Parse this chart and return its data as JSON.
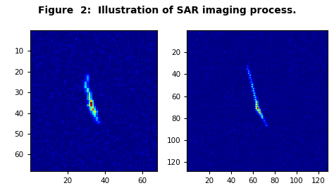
{
  "title": "Figure  2:  Illustration of SAR imaging process.",
  "title_fontsize": 10,
  "title_fontweight": "bold",
  "fig_facecolor": "#ffffff",
  "subplot1": {
    "xlim": [
      0,
      68
    ],
    "ylim": [
      68,
      0
    ],
    "xticks": [
      20,
      40,
      60
    ],
    "yticks": [
      10,
      20,
      30,
      40,
      50,
      60
    ],
    "size": 68,
    "noise_scale": 0.012,
    "ship_points": [
      [
        22,
        30,
        0.25
      ],
      [
        23,
        30,
        0.28
      ],
      [
        24,
        30,
        0.22
      ],
      [
        25,
        29,
        0.3
      ],
      [
        26,
        29,
        0.32
      ],
      [
        27,
        29,
        0.35
      ],
      [
        28,
        30,
        0.38
      ],
      [
        29,
        30,
        0.4
      ],
      [
        30,
        31,
        0.45
      ],
      [
        31,
        31,
        0.5
      ],
      [
        32,
        31,
        0.55
      ],
      [
        33,
        31,
        0.55
      ],
      [
        34,
        32,
        0.7
      ],
      [
        35,
        32,
        0.85
      ],
      [
        36,
        32,
        0.95
      ],
      [
        36,
        31,
        0.6
      ],
      [
        37,
        33,
        0.55
      ],
      [
        37,
        32,
        0.45
      ],
      [
        38,
        33,
        0.8
      ],
      [
        38,
        32,
        0.5
      ],
      [
        39,
        34,
        0.6
      ],
      [
        39,
        33,
        0.4
      ],
      [
        40,
        34,
        0.45
      ],
      [
        40,
        33,
        0.35
      ],
      [
        41,
        34,
        0.35
      ],
      [
        42,
        35,
        0.3
      ],
      [
        43,
        35,
        0.25
      ],
      [
        44,
        36,
        0.2
      ]
    ],
    "bright_spot1": [
      35,
      32,
      1.0
    ],
    "bright_spot2": [
      38,
      33,
      0.85
    ]
  },
  "subplot2": {
    "xlim": [
      0,
      128
    ],
    "ylim": [
      128,
      0
    ],
    "xticks": [
      20,
      40,
      60,
      80,
      100,
      120
    ],
    "yticks": [
      20,
      40,
      60,
      80,
      100,
      120
    ],
    "size": 128,
    "noise_scale": 0.01,
    "ship_points": [
      [
        33,
        55,
        0.2
      ],
      [
        35,
        55,
        0.22
      ],
      [
        37,
        56,
        0.25
      ],
      [
        39,
        56,
        0.28
      ],
      [
        41,
        57,
        0.28
      ],
      [
        43,
        57,
        0.3
      ],
      [
        45,
        58,
        0.3
      ],
      [
        47,
        58,
        0.32
      ],
      [
        49,
        59,
        0.35
      ],
      [
        51,
        59,
        0.35
      ],
      [
        53,
        60,
        0.38
      ],
      [
        55,
        60,
        0.4
      ],
      [
        57,
        61,
        0.42
      ],
      [
        59,
        61,
        0.45
      ],
      [
        61,
        62,
        0.5
      ],
      [
        63,
        62,
        0.55
      ],
      [
        65,
        63,
        0.6
      ],
      [
        67,
        63,
        0.65
      ],
      [
        69,
        63,
        0.7
      ],
      [
        70,
        64,
        0.8
      ],
      [
        71,
        64,
        0.9
      ],
      [
        71,
        63,
        0.55
      ],
      [
        72,
        65,
        0.75
      ],
      [
        72,
        64,
        0.5
      ],
      [
        73,
        65,
        0.65
      ],
      [
        73,
        64,
        0.45
      ],
      [
        74,
        66,
        0.6
      ],
      [
        74,
        65,
        0.45
      ],
      [
        75,
        66,
        0.55
      ],
      [
        75,
        65,
        0.4
      ],
      [
        76,
        67,
        0.5
      ],
      [
        77,
        67,
        0.45
      ],
      [
        78,
        68,
        0.4
      ],
      [
        79,
        68,
        0.35
      ],
      [
        80,
        69,
        0.3
      ],
      [
        82,
        70,
        0.25
      ],
      [
        84,
        71,
        0.22
      ],
      [
        86,
        72,
        0.2
      ]
    ],
    "bright_spot1": [
      70,
      64,
      1.0
    ],
    "bright_spot2": [
      74,
      66,
      0.8
    ]
  }
}
